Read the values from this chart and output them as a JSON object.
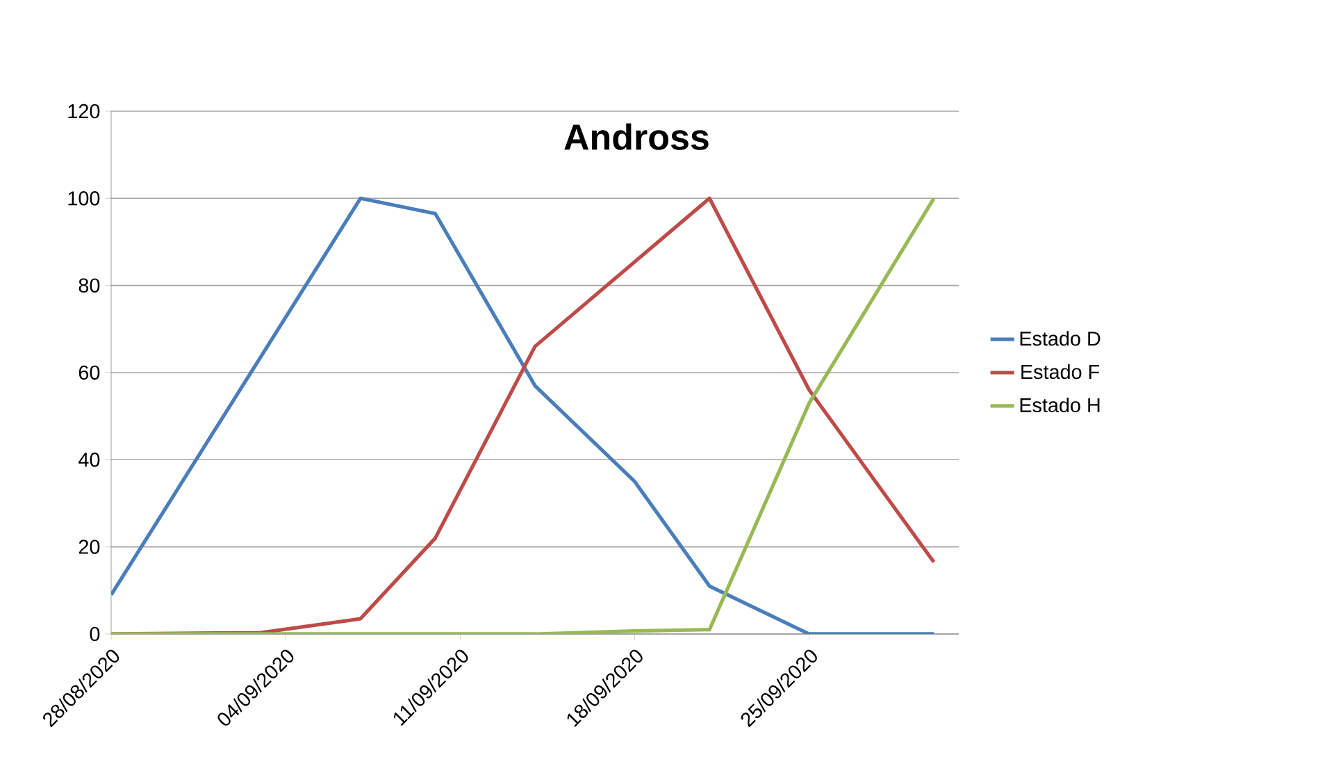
{
  "chart_data": {
    "type": "line",
    "title": "Andross",
    "xlim": [
      "2020-08-28",
      "2020-10-01"
    ],
    "xticks": [
      {
        "value": "2020-08-28",
        "label": "28/08/2020"
      },
      {
        "value": "2020-09-04",
        "label": "04/09/2020"
      },
      {
        "value": "2020-09-11",
        "label": "11/09/2020"
      },
      {
        "value": "2020-09-18",
        "label": "18/09/2020"
      },
      {
        "value": "2020-09-25",
        "label": "25/09/2020"
      }
    ],
    "ylim": [
      0,
      120
    ],
    "yticks": [
      0,
      20,
      40,
      60,
      80,
      100,
      120
    ],
    "grid": "y",
    "legend": "right",
    "marker": "none",
    "line_style": "solid",
    "series": [
      {
        "name": "Estado D",
        "color": "#4a7ebb",
        "x": [
          "2020-08-28",
          "2020-09-07",
          "2020-09-10",
          "2020-09-14",
          "2020-09-18",
          "2020-09-21",
          "2020-09-25",
          "2020-09-30"
        ],
        "values": [
          9,
          100,
          96.5,
          57,
          35,
          11,
          0,
          0
        ]
      },
      {
        "name": "Estado F",
        "color": "#be4b48",
        "x": [
          "2020-08-28",
          "2020-09-03",
          "2020-09-07",
          "2020-09-10",
          "2020-09-14",
          "2020-09-21",
          "2020-09-25",
          "2020-09-30"
        ],
        "values": [
          0,
          0.3,
          3.5,
          22,
          66,
          100,
          56,
          16.5
        ]
      },
      {
        "name": "Estado H",
        "color": "#98b954",
        "x": [
          "2020-08-28",
          "2020-09-14",
          "2020-09-18",
          "2020-09-21",
          "2020-09-25",
          "2020-09-30"
        ],
        "values": [
          0,
          0,
          0.7,
          1,
          53,
          100
        ]
      }
    ]
  }
}
